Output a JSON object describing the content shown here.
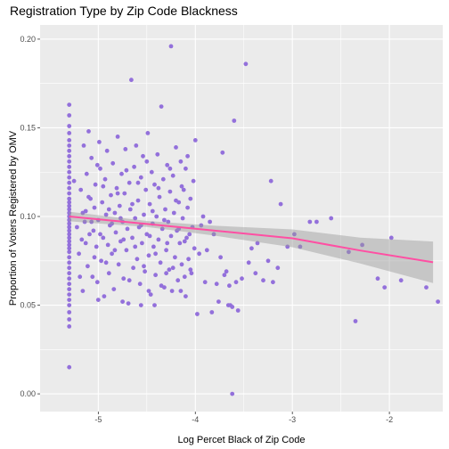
{
  "chart_data": {
    "type": "scatter",
    "title": "Registration Type by Zip Code Blackness",
    "xlabel": "Log Percet Black of Zip Code",
    "ylabel": "Proportion of Voters Registered by OMV",
    "xlim": [
      -5.6,
      -1.45
    ],
    "ylim": [
      -0.01,
      0.208
    ],
    "xticks": [
      -5,
      -4,
      -3,
      -2
    ],
    "xtick_labels": [
      "-5",
      "-4",
      "-3",
      "-2"
    ],
    "yticks": [
      0.0,
      0.05,
      0.1,
      0.15,
      0.2
    ],
    "ytick_labels": [
      "0.00",
      "0.05",
      "0.10",
      "0.15",
      "0.20"
    ],
    "grid": true,
    "legend": "none",
    "point_color": "#9370DB",
    "line_color": "#FF4FA3",
    "band_color": "#999999",
    "panel_bg": "#EBEBEB",
    "trend_line": {
      "method": "linear regression with confidence band",
      "x": [
        -5.3,
        -4.5,
        -3.8,
        -3.0,
        -2.3,
        -1.55
      ],
      "y": [
        0.1,
        0.0958,
        0.092,
        0.0877,
        0.0808,
        0.0742
      ],
      "lower": [
        0.0973,
        0.0941,
        0.0892,
        0.0827,
        0.0735,
        0.0625
      ],
      "upper": [
        0.1027,
        0.0975,
        0.0948,
        0.0927,
        0.0881,
        0.0859
      ]
    },
    "points": [
      [
        -5.3,
        0.163
      ],
      [
        -5.3,
        0.157
      ],
      [
        -5.3,
        0.151
      ],
      [
        -5.3,
        0.147
      ],
      [
        -5.3,
        0.143
      ],
      [
        -5.3,
        0.14
      ],
      [
        -5.3,
        0.137
      ],
      [
        -5.3,
        0.134
      ],
      [
        -5.3,
        0.131
      ],
      [
        -5.3,
        0.128
      ],
      [
        -5.3,
        0.125
      ],
      [
        -5.3,
        0.122
      ],
      [
        -5.3,
        0.119
      ],
      [
        -5.3,
        0.116
      ],
      [
        -5.3,
        0.113
      ],
      [
        -5.3,
        0.11
      ],
      [
        -5.3,
        0.108
      ],
      [
        -5.3,
        0.106
      ],
      [
        -5.3,
        0.104
      ],
      [
        -5.3,
        0.102
      ],
      [
        -5.3,
        0.1
      ],
      [
        -5.3,
        0.098
      ],
      [
        -5.3,
        0.096
      ],
      [
        -5.3,
        0.094
      ],
      [
        -5.3,
        0.092
      ],
      [
        -5.3,
        0.09
      ],
      [
        -5.3,
        0.088
      ],
      [
        -5.3,
        0.086
      ],
      [
        -5.3,
        0.084
      ],
      [
        -5.3,
        0.082
      ],
      [
        -5.3,
        0.08
      ],
      [
        -5.3,
        0.077
      ],
      [
        -5.3,
        0.074
      ],
      [
        -5.3,
        0.071
      ],
      [
        -5.3,
        0.068
      ],
      [
        -5.3,
        0.065
      ],
      [
        -5.3,
        0.062
      ],
      [
        -5.3,
        0.059
      ],
      [
        -5.3,
        0.056
      ],
      [
        -5.3,
        0.053
      ],
      [
        -5.3,
        0.05
      ],
      [
        -5.3,
        0.046
      ],
      [
        -5.3,
        0.042
      ],
      [
        -5.3,
        0.038
      ],
      [
        -5.3,
        0.015
      ],
      [
        -5.2,
        0.079
      ],
      [
        -5.18,
        0.115
      ],
      [
        -5.17,
        0.087
      ],
      [
        -5.16,
        0.058
      ],
      [
        -5.15,
        0.14
      ],
      [
        -5.14,
        0.097
      ],
      [
        -5.13,
        0.103
      ],
      [
        -5.12,
        0.124
      ],
      [
        -5.11,
        0.072
      ],
      [
        -5.1,
        0.148
      ],
      [
        -5.09,
        0.09
      ],
      [
        -5.08,
        0.11
      ],
      [
        -5.07,
        0.133
      ],
      [
        -5.06,
        0.066
      ],
      [
        -5.05,
        0.092
      ],
      [
        -5.04,
        0.105
      ],
      [
        -5.03,
        0.118
      ],
      [
        -5.02,
        0.083
      ],
      [
        -5.01,
        0.063
      ],
      [
        -5.0,
        0.098
      ],
      [
        -4.99,
        0.142
      ],
      [
        -4.98,
        0.127
      ],
      [
        -4.97,
        0.075
      ],
      [
        -4.96,
        0.108
      ],
      [
        -4.95,
        0.088
      ],
      [
        -4.94,
        0.055
      ],
      [
        -4.93,
        0.121
      ],
      [
        -4.92,
        0.101
      ],
      [
        -4.91,
        0.137
      ],
      [
        -4.9,
        0.084
      ],
      [
        -4.89,
        0.068
      ],
      [
        -4.88,
        0.095
      ],
      [
        -4.87,
        0.112
      ],
      [
        -4.86,
        0.079
      ],
      [
        -4.85,
        0.13
      ],
      [
        -4.84,
        0.059
      ],
      [
        -4.83,
        0.102
      ],
      [
        -4.82,
        0.091
      ],
      [
        -4.81,
        0.116
      ],
      [
        -4.8,
        0.145
      ],
      [
        -4.79,
        0.073
      ],
      [
        -4.78,
        0.106
      ],
      [
        -4.77,
        0.086
      ],
      [
        -4.76,
        0.124
      ],
      [
        -4.75,
        0.097
      ],
      [
        -4.74,
        0.065
      ],
      [
        -4.73,
        0.113
      ],
      [
        -4.72,
        0.138
      ],
      [
        -4.71,
        0.081
      ],
      [
        -4.7,
        0.093
      ],
      [
        -4.69,
        0.051
      ],
      [
        -4.68,
        0.119
      ],
      [
        -4.67,
        0.104
      ],
      [
        -4.66,
        0.177
      ],
      [
        -4.65,
        0.088
      ],
      [
        -4.64,
        0.071
      ],
      [
        -4.63,
        0.128
      ],
      [
        -4.62,
        0.099
      ],
      [
        -4.61,
        0.14
      ],
      [
        -4.6,
        0.076
      ],
      [
        -4.59,
        0.109
      ],
      [
        -4.58,
        0.094
      ],
      [
        -4.57,
        0.062
      ],
      [
        -4.56,
        0.122
      ],
      [
        -4.55,
        0.085
      ],
      [
        -4.54,
        0.134
      ],
      [
        -4.53,
        0.101
      ],
      [
        -4.52,
        0.069
      ],
      [
        -4.51,
        0.115
      ],
      [
        -4.5,
        0.09
      ],
      [
        -4.49,
        0.147
      ],
      [
        -4.48,
        0.078
      ],
      [
        -4.47,
        0.107
      ],
      [
        -4.46,
        0.056
      ],
      [
        -4.45,
        0.125
      ],
      [
        -4.44,
        0.096
      ],
      [
        -4.43,
        0.083
      ],
      [
        -4.42,
        0.118
      ],
      [
        -4.41,
        0.067
      ],
      [
        -4.4,
        0.1
      ],
      [
        -4.39,
        0.135
      ],
      [
        -4.38,
        0.087
      ],
      [
        -4.37,
        0.111
      ],
      [
        -4.36,
        0.074
      ],
      [
        -4.35,
        0.162
      ],
      [
        -4.34,
        0.093
      ],
      [
        -4.33,
        0.121
      ],
      [
        -4.32,
        0.06
      ],
      [
        -4.31,
        0.104
      ],
      [
        -4.3,
        0.081
      ],
      [
        -4.29,
        0.129
      ],
      [
        -4.28,
        0.097
      ],
      [
        -4.27,
        0.07
      ],
      [
        -4.26,
        0.114
      ],
      [
        -4.25,
        0.089
      ],
      [
        -4.24,
        0.058
      ],
      [
        -4.23,
        0.123
      ],
      [
        -4.22,
        0.102
      ],
      [
        -4.21,
        0.077
      ],
      [
        -4.2,
        0.139
      ],
      [
        -4.19,
        0.092
      ],
      [
        -4.18,
        0.064
      ],
      [
        -4.17,
        0.108
      ],
      [
        -4.16,
        0.085
      ],
      [
        -4.15,
        0.131
      ],
      [
        -4.14,
        0.073
      ],
      [
        -4.13,
        0.099
      ],
      [
        -4.12,
        0.115
      ],
      [
        -4.11,
        0.066
      ],
      [
        -4.1,
        0.127
      ],
      [
        -4.09,
        0.088
      ],
      [
        -4.08,
        0.105
      ],
      [
        -4.07,
        0.076
      ],
      [
        -4.06,
        0.09
      ],
      [
        -4.05,
        0.11
      ],
      [
        -4.04,
        0.068
      ],
      [
        -4.03,
        0.094
      ],
      [
        -4.02,
        0.12
      ],
      [
        -4.01,
        0.082
      ],
      [
        -4.0,
        0.143
      ],
      [
        -5.25,
        0.12
      ],
      [
        -5.22,
        0.094
      ],
      [
        -5.19,
        0.066
      ],
      [
        -5.16,
        0.102
      ],
      [
        -5.13,
        0.085
      ],
      [
        -5.1,
        0.111
      ],
      [
        -5.07,
        0.097
      ],
      [
        -5.04,
        0.077
      ],
      [
        -5.01,
        0.129
      ],
      [
        -4.98,
        0.09
      ],
      [
        -4.95,
        0.117
      ],
      [
        -4.92,
        0.074
      ],
      [
        -4.89,
        0.104
      ],
      [
        -4.86,
        0.096
      ],
      [
        -4.83,
        0.081
      ],
      [
        -4.8,
        0.113
      ],
      [
        -4.77,
        0.099
      ],
      [
        -4.74,
        0.087
      ],
      [
        -4.71,
        0.126
      ],
      [
        -4.68,
        0.064
      ],
      [
        -4.65,
        0.107
      ],
      [
        -4.62,
        0.083
      ],
      [
        -4.59,
        0.119
      ],
      [
        -4.56,
        0.095
      ],
      [
        -4.53,
        0.072
      ],
      [
        -4.5,
        0.131
      ],
      [
        -4.47,
        0.089
      ],
      [
        -4.44,
        0.103
      ],
      [
        -4.41,
        0.079
      ],
      [
        -4.38,
        0.116
      ],
      [
        -4.35,
        0.061
      ],
      [
        -4.32,
        0.098
      ],
      [
        -4.29,
        0.085
      ],
      [
        -4.26,
        0.127
      ],
      [
        -4.23,
        0.071
      ],
      [
        -4.2,
        0.109
      ],
      [
        -4.17,
        0.093
      ],
      [
        -4.14,
        0.117
      ],
      [
        -4.11,
        0.086
      ],
      [
        -4.08,
        0.134
      ],
      [
        -4.25,
        0.196
      ],
      [
        -4.42,
        0.05
      ],
      [
        -4.48,
        0.058
      ],
      [
        -4.56,
        0.05
      ],
      [
        -4.1,
        0.055
      ],
      [
        -4.05,
        0.07
      ],
      [
        -3.98,
        0.045
      ],
      [
        -3.96,
        0.079
      ],
      [
        -3.94,
        0.095
      ],
      [
        -3.92,
        0.1
      ],
      [
        -3.9,
        0.063
      ],
      [
        -3.88,
        0.081
      ],
      [
        -3.85,
        0.097
      ],
      [
        -3.83,
        0.046
      ],
      [
        -3.81,
        0.09
      ],
      [
        -3.78,
        0.062
      ],
      [
        -3.76,
        0.052
      ],
      [
        -3.74,
        0.077
      ],
      [
        -3.72,
        0.136
      ],
      [
        -3.7,
        0.067
      ],
      [
        -3.68,
        0.069
      ],
      [
        -3.66,
        0.05
      ],
      [
        -3.64,
        0.05
      ],
      [
        -3.62,
        0.049
      ],
      [
        -3.6,
        0.154
      ],
      [
        -3.58,
        0.063
      ],
      [
        -3.56,
        0.047
      ],
      [
        -3.52,
        0.065
      ],
      [
        -3.48,
        0.186
      ],
      [
        -3.45,
        0.074
      ],
      [
        -3.42,
        0.082
      ],
      [
        -3.38,
        0.068
      ],
      [
        -3.36,
        0.085
      ],
      [
        -3.3,
        0.064
      ],
      [
        -3.25,
        0.075
      ],
      [
        -3.22,
        0.12
      ],
      [
        -3.2,
        0.063
      ],
      [
        -3.15,
        0.071
      ],
      [
        -3.12,
        0.107
      ],
      [
        -3.05,
        0.083
      ],
      [
        -2.98,
        0.09
      ],
      [
        -2.92,
        0.083
      ],
      [
        -2.82,
        0.097
      ],
      [
        -2.75,
        0.097
      ],
      [
        -2.6,
        0.099
      ],
      [
        -2.42,
        0.08
      ],
      [
        -2.35,
        0.041
      ],
      [
        -2.28,
        0.084
      ],
      [
        -2.12,
        0.065
      ],
      [
        -2.05,
        0.06
      ],
      [
        -1.98,
        0.088
      ],
      [
        -1.88,
        0.064
      ],
      [
        -1.62,
        0.06
      ],
      [
        -1.5,
        0.052
      ],
      [
        -3.62,
        0.0
      ],
      [
        -3.65,
        0.061
      ],
      [
        -4.15,
        0.058
      ],
      [
        -4.3,
        0.068
      ],
      [
        -5.0,
        0.053
      ],
      [
        -4.75,
        0.052
      ]
    ]
  }
}
